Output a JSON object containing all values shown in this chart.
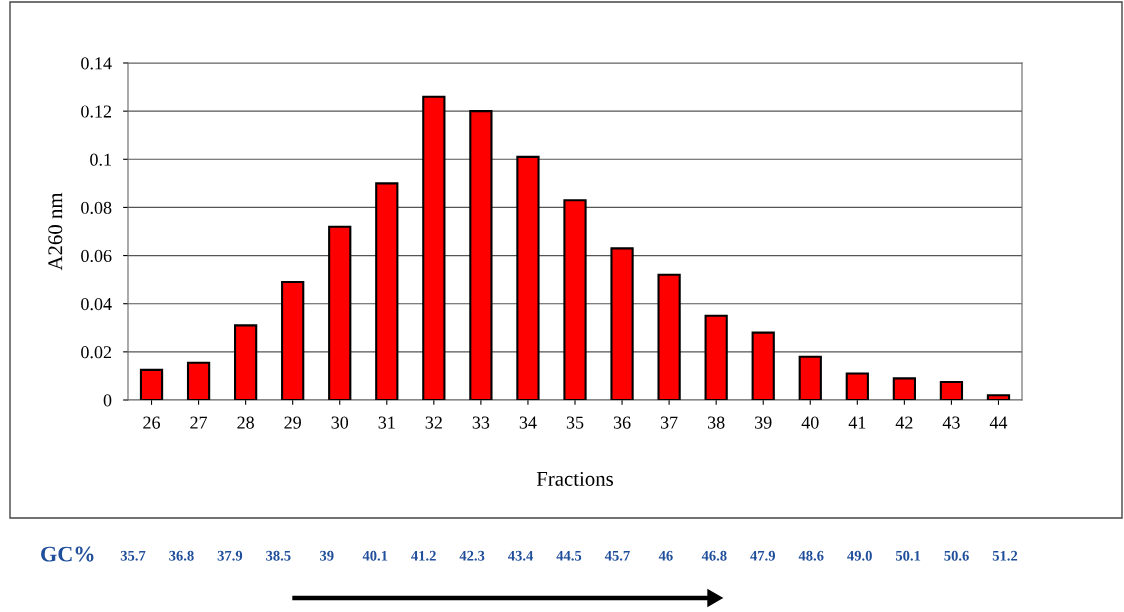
{
  "chart_data": {
    "type": "bar",
    "xlabel": "Fractions",
    "ylabel": "A260 nm",
    "categories": [
      "26",
      "27",
      "28",
      "29",
      "30",
      "31",
      "32",
      "33",
      "34",
      "35",
      "36",
      "37",
      "38",
      "39",
      "40",
      "41",
      "42",
      "43",
      "44"
    ],
    "values": [
      0.0125,
      0.0155,
      0.031,
      0.049,
      0.072,
      0.09,
      0.126,
      0.12,
      0.101,
      0.083,
      0.063,
      0.052,
      0.035,
      0.028,
      0.018,
      0.011,
      0.009,
      0.0075,
      0.002
    ],
    "color": "#ff0000",
    "ylim": [
      0,
      0.14
    ],
    "yticks": [
      0,
      0.02,
      0.04,
      0.06,
      0.08,
      0.1,
      0.12,
      0.14
    ],
    "grid": "y",
    "annotations": [
      "GC%",
      "35.7",
      "36.8",
      "37.9",
      "38.5",
      "39",
      "40.1",
      "41.2",
      "42.3",
      "43.4",
      "44.5",
      "45.7",
      "46",
      "46.8",
      "47.9",
      "48.6",
      "49.0",
      "50.1",
      "50.6",
      "51.2"
    ]
  }
}
